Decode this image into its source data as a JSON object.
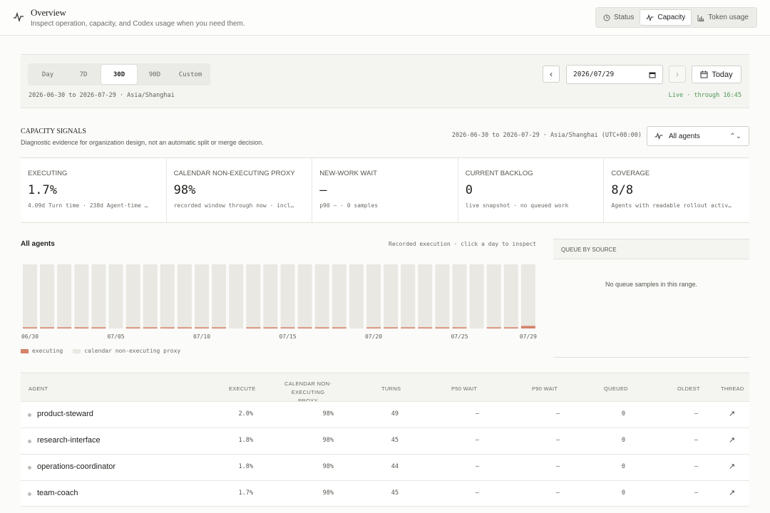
{
  "header": {
    "title": "Overview",
    "subtitle": "Inspect operation, capacity, and Codex usage when you need them.",
    "tabs": [
      {
        "label": "Status",
        "icon": "clock-icon",
        "active": false
      },
      {
        "label": "Capacity",
        "icon": "pulse-icon",
        "active": true
      },
      {
        "label": "Token usage",
        "icon": "bar-chart-icon",
        "active": false
      }
    ]
  },
  "period": {
    "ranges": [
      "Day",
      "7D",
      "30D",
      "90D",
      "Custom"
    ],
    "active_range": "30D",
    "range_text": "2026-06-30 to 2026-07-29 · Asia/Shanghai",
    "date_value": "2026/07/29",
    "today_label": "Today",
    "live_text": "Live · through 16:45"
  },
  "capacity": {
    "title": "CAPACITY SIGNALS",
    "subtitle": "Diagnostic evidence for organization design, not an automatic split or merge decision.",
    "range_text": "2026-06-30 to 2026-07-29 · Asia/Shanghai (UTC+08:00)",
    "agent_select": "All agents"
  },
  "metrics": [
    {
      "label": "EXECUTING",
      "value": "1.7%",
      "note": "4.09d Turn time · 238d Agent-time …"
    },
    {
      "label": "CALENDAR NON-EXECUTING PROXY",
      "value": "98%",
      "note": "recorded window through now · incl…"
    },
    {
      "label": "NEW-WORK WAIT",
      "value": "—",
      "note": "p90 — · 0 samples"
    },
    {
      "label": "CURRENT BACKLOG",
      "value": "0",
      "note": "live snapshot · no queued work"
    },
    {
      "label": "COVERAGE",
      "value": "8/8",
      "note": "Agents with readable rollout activ…"
    }
  ],
  "chart": {
    "title": "All agents",
    "hint": "Recorded execution · click a day to inspect",
    "legend": [
      {
        "label": "executing",
        "color": "#d4826a"
      },
      {
        "label": "calendar non-executing proxy",
        "color": "#e9e8e3"
      }
    ]
  },
  "chart_data": {
    "type": "bar",
    "stacked": true,
    "categories": [
      "06/30",
      "07/01",
      "07/02",
      "07/03",
      "07/04",
      "07/05",
      "07/06",
      "07/07",
      "07/08",
      "07/09",
      "07/10",
      "07/11",
      "07/12",
      "07/13",
      "07/14",
      "07/15",
      "07/16",
      "07/17",
      "07/18",
      "07/19",
      "07/20",
      "07/21",
      "07/22",
      "07/23",
      "07/24",
      "07/25",
      "07/26",
      "07/27",
      "07/28",
      "07/29"
    ],
    "tick_labels": [
      "06/30",
      "07/05",
      "07/10",
      "07/15",
      "07/20",
      "07/25",
      "07/29"
    ],
    "series": [
      {
        "name": "executing",
        "values": [
          1.8,
          1.8,
          1.8,
          1.8,
          1.8,
          0,
          1.8,
          1.8,
          1.8,
          1.8,
          1.8,
          1.8,
          0,
          1.8,
          1.8,
          1.8,
          1.8,
          1.8,
          1.8,
          0,
          1.8,
          1.8,
          1.8,
          1.8,
          1.8,
          1.8,
          0,
          1.8,
          1.8,
          4.0
        ]
      },
      {
        "name": "calendar non-executing proxy",
        "values": [
          98.2,
          98.2,
          98.2,
          98.2,
          98.2,
          100,
          98.2,
          98.2,
          98.2,
          98.2,
          98.2,
          98.2,
          100,
          98.2,
          98.2,
          98.2,
          98.2,
          98.2,
          98.2,
          100,
          98.2,
          98.2,
          98.2,
          98.2,
          98.2,
          98.2,
          100,
          98.2,
          98.2,
          96.0
        ]
      }
    ],
    "ylim": [
      0,
      100
    ],
    "colors": {
      "executing": "#d4826a",
      "proxy": "#e9e8e3"
    }
  },
  "queue": {
    "title": "QUEUE BY SOURCE",
    "empty": "No queue samples in this range."
  },
  "table": {
    "headers": {
      "agent": "AGENT",
      "execute": "EXECUTE",
      "proxy_1": "CALENDAR NON-",
      "proxy_2": "EXECUTING PROXY",
      "turns": "TURNS",
      "p50": "P50 WAIT",
      "p90": "P90 WAIT",
      "queued": "QUEUED",
      "oldest": "OLDEST",
      "thread": "THREAD"
    },
    "rows": [
      {
        "agent": "product-steward",
        "execute": "2.0%",
        "proxy": "98%",
        "turns": "49",
        "p50": "—",
        "p90": "—",
        "queued": "0",
        "oldest": "—",
        "thread": "↗"
      },
      {
        "agent": "research-interface",
        "execute": "1.8%",
        "proxy": "98%",
        "turns": "45",
        "p50": "—",
        "p90": "—",
        "queued": "0",
        "oldest": "—",
        "thread": "↗"
      },
      {
        "agent": "operations-coordinator",
        "execute": "1.8%",
        "proxy": "98%",
        "turns": "44",
        "p50": "—",
        "p90": "—",
        "queued": "0",
        "oldest": "—",
        "thread": "↗"
      },
      {
        "agent": "team-coach",
        "execute": "1.7%",
        "proxy": "98%",
        "turns": "45",
        "p50": "—",
        "p90": "—",
        "queued": "0",
        "oldest": "—",
        "thread": "↗"
      }
    ]
  }
}
